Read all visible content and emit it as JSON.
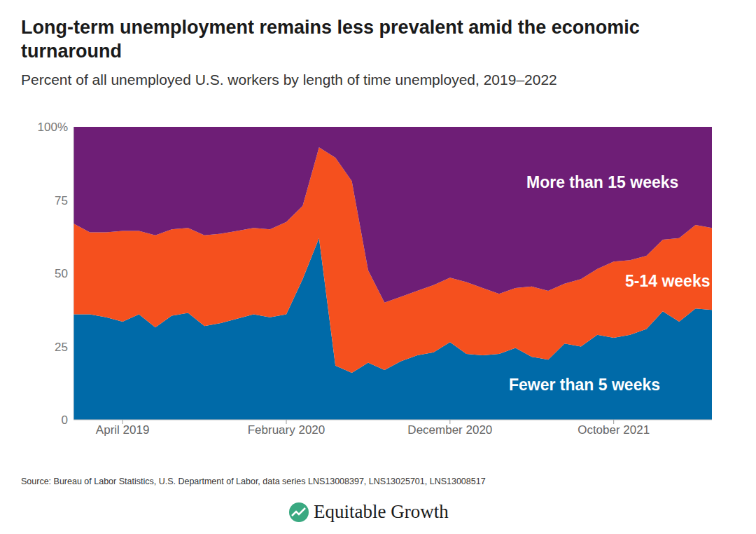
{
  "chart_data": {
    "type": "area",
    "title": "Long-term unemployment remains less prevalent amid the economic turnaround",
    "subtitle": "Percent of all unemployed U.S. workers by length of time unemployed, 2019–2022",
    "source": "Source: Bureau of Labor Statistics, U.S. Department of Labor, data series LNS13008397, LNS13025701, LNS13008517",
    "branding": "Equitable Growth",
    "categories": [
      null,
      null,
      null,
      "April 2019",
      null,
      null,
      null,
      null,
      null,
      null,
      null,
      null,
      null,
      "February 2020",
      null,
      null,
      null,
      null,
      null,
      null,
      null,
      null,
      null,
      "December 2020",
      null,
      null,
      null,
      null,
      null,
      null,
      null,
      null,
      null,
      "October 2021",
      null,
      null,
      null,
      null,
      null,
      null
    ],
    "series": [
      {
        "name": "Fewer than 5 weeks",
        "color": "#006aa8",
        "values": [
          36,
          36,
          35,
          33.5,
          36,
          31.5,
          35.5,
          36.5,
          32,
          33,
          34.5,
          36,
          35,
          36,
          48,
          62,
          18.5,
          16,
          19.5,
          17,
          20,
          22,
          23,
          26.5,
          22.5,
          22,
          22.5,
          24.5,
          21.5,
          20.5,
          26,
          25,
          29,
          28,
          29,
          31,
          37,
          33.5,
          38,
          37.5
        ]
      },
      {
        "name": "5-14 weeks",
        "color": "#f5501e",
        "values": [
          31,
          28,
          29,
          31,
          28.5,
          31.5,
          29.5,
          29,
          31,
          30.5,
          30,
          29.5,
          30,
          31.5,
          25,
          31,
          71,
          65.5,
          31.5,
          23,
          22,
          22,
          23,
          22,
          24.5,
          23,
          20.5,
          20.5,
          24,
          23.5,
          20.5,
          23,
          22.5,
          26,
          25.5,
          25,
          24.5,
          28.5,
          28.5,
          28
        ]
      },
      {
        "name": "More than 15 weeks",
        "color": "#6e1e76",
        "values": [
          33,
          36,
          36,
          35.5,
          35.5,
          37,
          35,
          34.5,
          37,
          36.5,
          35.5,
          34.5,
          35,
          32.5,
          27,
          7,
          10.5,
          18.5,
          49,
          60,
          58,
          56,
          54,
          51.5,
          53,
          55,
          57,
          55,
          54.5,
          56,
          53.5,
          52,
          48.5,
          46,
          45.5,
          44,
          38.5,
          38,
          33.5,
          34.5
        ]
      }
    ],
    "ylim": [
      0,
      100
    ],
    "yticks": [
      0,
      25,
      50,
      75,
      {
        "value": 100,
        "label": "100%"
      }
    ],
    "grid": false,
    "stacked": true
  }
}
